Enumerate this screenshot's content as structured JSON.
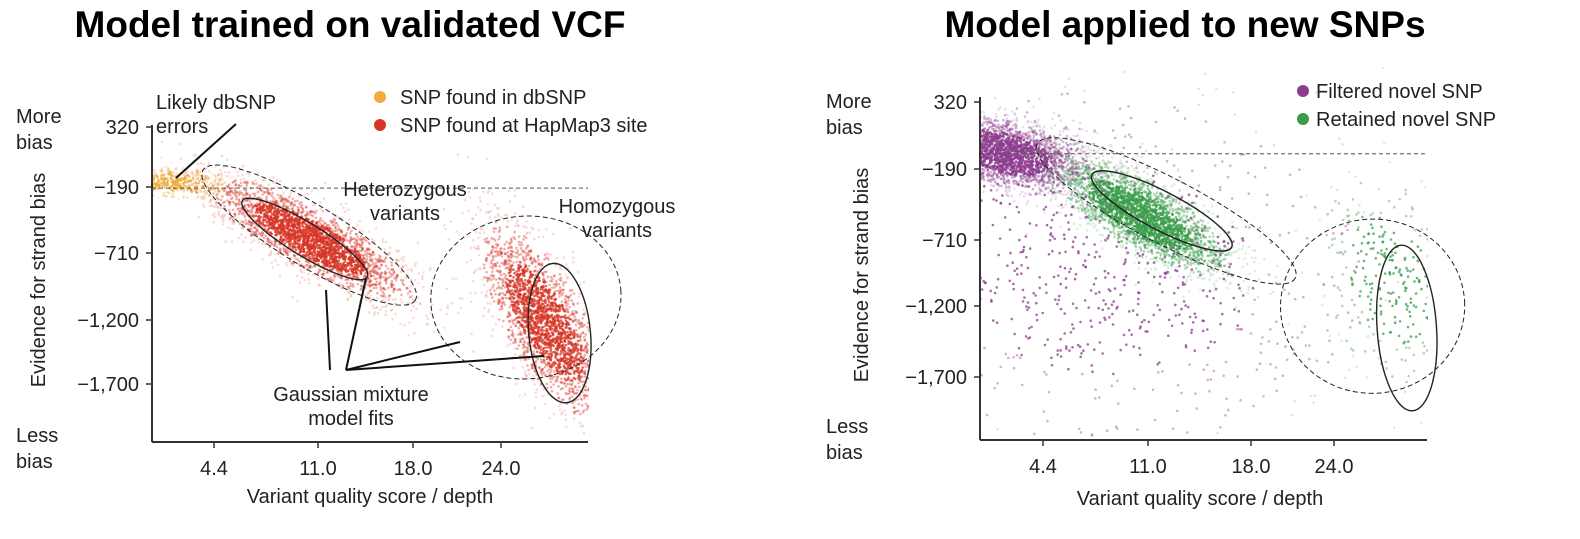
{
  "chart_data": [
    {
      "type": "scatter",
      "title": "Model trained on validated VCF",
      "xlabel": "Variant quality score / depth",
      "ylabel": "Evidence for strand bias",
      "x_ticks": [
        "4.4",
        "11.0",
        "18.0",
        "24.0"
      ],
      "y_ticks": [
        "320",
        "−190",
        "−710",
        "−1,200",
        "−1,700"
      ],
      "x_tick_values": [
        4.4,
        11.0,
        18.0,
        24.0
      ],
      "y_tick_values": [
        320,
        -190,
        -710,
        -1200,
        -1700
      ],
      "xlim": [
        -1.0,
        33.0
      ],
      "ylim": [
        -2140,
        330
      ],
      "y_top_label": "More\nbias",
      "y_bottom_label": "Less\nbias",
      "legend": {
        "placement": "top-right"
      },
      "series": [
        {
          "name": "SNP found in dbSNP",
          "color": "#f0ac3c",
          "clusters": [
            {
              "x": 1.5,
              "y": -120,
              "sx": 2.0,
              "sy": 60,
              "rho": -0.2,
              "n": 400
            }
          ]
        },
        {
          "name": "SNP found at HapMap3 site",
          "color": "#d73527",
          "clusters": [
            {
              "x": 11.0,
              "y": -560,
              "sx": 3.3,
              "sy": 230,
              "rho": -0.82,
              "n": 2600
            },
            {
              "x": 27.0,
              "y": -1210,
              "sx": 2.2,
              "sy": 380,
              "rho": -0.72,
              "n": 2200
            }
          ]
        }
      ],
      "ellipses": [
        {
          "cx": 10.9,
          "cy": -530,
          "rx": 8.5,
          "ry": 240,
          "rot": 0.55,
          "dashed": true
        },
        {
          "cx": 10.6,
          "cy": -560,
          "rx": 5.0,
          "ry": 130,
          "rot": 0.55,
          "dashed": false
        },
        {
          "cx": 25.7,
          "cy": -1020,
          "rx": 6.5,
          "ry": 640,
          "rot": -0.08,
          "dashed": true
        },
        {
          "cx": 28.0,
          "cy": -1300,
          "rx": 2.1,
          "ry": 550,
          "rot": -0.1,
          "dashed": false
        }
      ],
      "ref_line_y": -160,
      "annotations": [
        {
          "text": "Likely dbSNP\nerrors"
        },
        {
          "text": "Heterozygous\nvariants"
        },
        {
          "text": "Homozygous\nvariants"
        },
        {
          "text": "Gaussian mixture\nmodel fits"
        }
      ]
    },
    {
      "type": "scatter",
      "title": "Model applied to new SNPs",
      "xlabel": "Variant quality score / depth",
      "ylabel": "Evidence for strand bias",
      "x_ticks": [
        "4.4",
        "11.0",
        "18.0",
        "24.0"
      ],
      "y_ticks": [
        "320",
        "−190",
        "−710",
        "−1,200",
        "−1,700"
      ],
      "x_tick_values": [
        4.4,
        11.0,
        18.0,
        24.0
      ],
      "y_tick_values": [
        320,
        -190,
        -710,
        -1200,
        -1700
      ],
      "xlim": [
        -2.0,
        33.0
      ],
      "ylim": [
        -2200,
        340
      ],
      "y_top_label": "More\nbias",
      "y_bottom_label": "Less\nbias",
      "legend": {
        "placement": "top-right"
      },
      "series": [
        {
          "name": "Filtered novel SNP",
          "color": "#8e3c8f",
          "clusters": [
            {
              "x": 1.5,
              "y": -50,
              "sx": 3.0,
              "sy": 140,
              "rho": -0.45,
              "n": 2600
            },
            {
              "x": 8.0,
              "y": -900,
              "sx": 9.0,
              "sy": 650,
              "rho": -0.1,
              "n": 900
            }
          ]
        },
        {
          "name": "Retained novel SNP",
          "color": "#3a9d4b",
          "clusters": [
            {
              "x": 11.0,
              "y": -510,
              "sx": 2.9,
              "sy": 210,
              "rho": -0.75,
              "n": 2600
            },
            {
              "x": 28.0,
              "y": -1000,
              "sx": 2.5,
              "sy": 400,
              "rho": -0.3,
              "n": 320
            }
          ]
        }
      ],
      "ellipses": [
        {
          "cx": 12.7,
          "cy": -480,
          "rx": 9.8,
          "ry": 240,
          "rot": 0.48,
          "dashed": true
        },
        {
          "cx": 12.4,
          "cy": -480,
          "rx": 5.3,
          "ry": 140,
          "rot": 0.48,
          "dashed": false
        },
        {
          "cx": 26.6,
          "cy": -1180,
          "rx": 6.2,
          "ry": 640,
          "rot": -0.05,
          "dashed": true
        },
        {
          "cx": 28.9,
          "cy": -1340,
          "rx": 2.0,
          "ry": 610,
          "rot": -0.07,
          "dashed": false
        }
      ],
      "ref_line_y": -60,
      "annotations": []
    }
  ]
}
